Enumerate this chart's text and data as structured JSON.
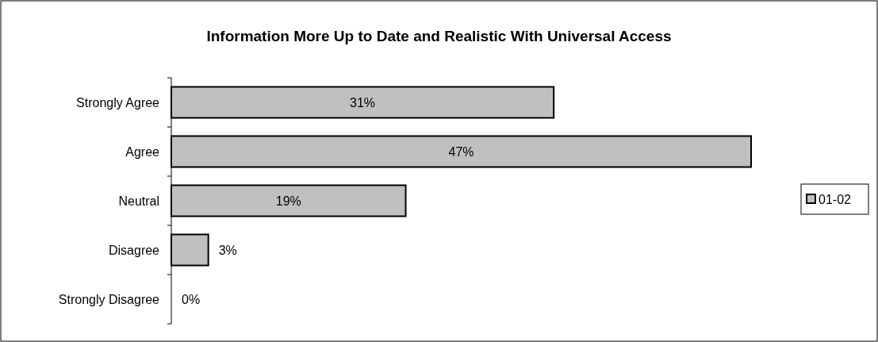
{
  "chart_data": {
    "type": "bar",
    "orientation": "horizontal",
    "title": "Information More Up to Date and Realistic With Universal Access",
    "categories": [
      "Strongly Agree",
      "Agree",
      "Neutral",
      "Disagree",
      "Strongly Disagree"
    ],
    "series": [
      {
        "name": "01-02",
        "color": "#c0c0c0",
        "values": [
          31,
          47,
          19,
          3,
          0
        ],
        "value_labels": [
          "31%",
          "47%",
          "19%",
          "3%",
          "0%"
        ]
      }
    ],
    "legend": "right"
  }
}
